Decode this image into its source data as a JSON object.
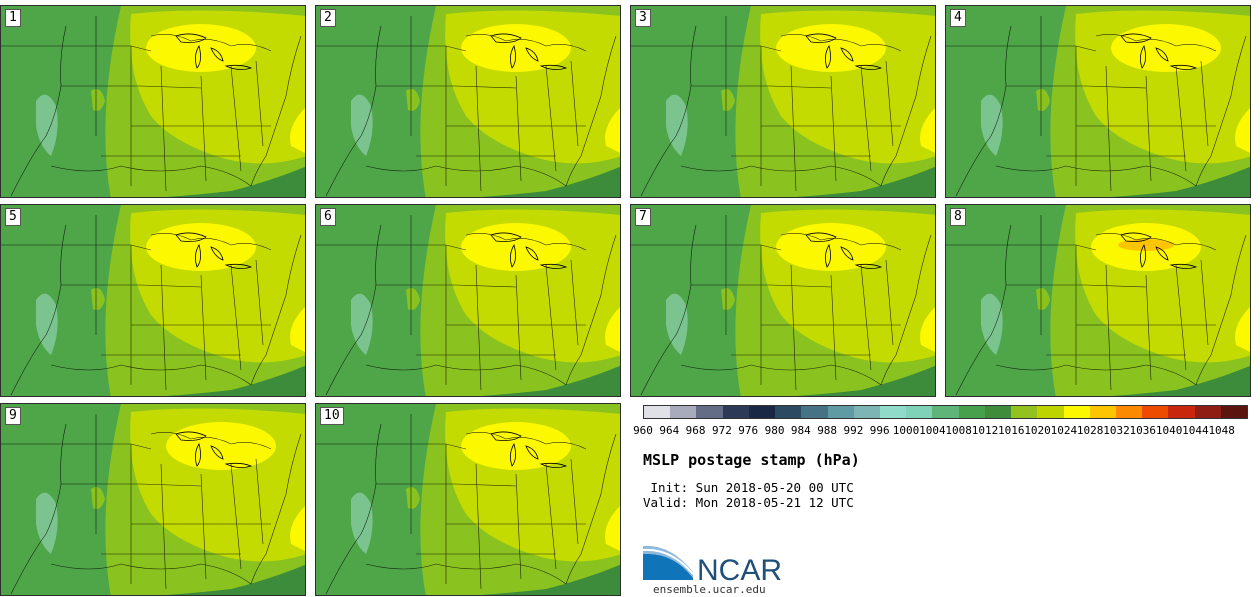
{
  "panels": [
    {
      "label": "1",
      "variant": "a"
    },
    {
      "label": "2",
      "variant": "b"
    },
    {
      "label": "3",
      "variant": "a"
    },
    {
      "label": "4",
      "variant": "c"
    },
    {
      "label": "5",
      "variant": "b"
    },
    {
      "label": "6",
      "variant": "a"
    },
    {
      "label": "7",
      "variant": "b"
    },
    {
      "label": "8",
      "variant": "d"
    },
    {
      "label": "9",
      "variant": "c"
    },
    {
      "label": "10",
      "variant": "a"
    }
  ],
  "colorbar": {
    "labels": [
      "960",
      "964",
      "968",
      "972",
      "976",
      "980",
      "984",
      "988",
      "992",
      "996",
      "1000",
      "1004",
      "1008",
      "1012",
      "1016",
      "1020",
      "1024",
      "1028",
      "1032",
      "1036",
      "1040",
      "1044",
      "1048"
    ],
    "colors": [
      "#dfe1e6",
      "#a8abbb",
      "#636e86",
      "#2c3a55",
      "#182845",
      "#2d4a63",
      "#457384",
      "#5e9ba3",
      "#7cb5b3",
      "#8fdac8",
      "#7fd1b7",
      "#5fb47a",
      "#46a04c",
      "#3f8d3a",
      "#93c11d",
      "#bed400",
      "#fbf800",
      "#fdc400",
      "#fb8a00",
      "#ec4b00",
      "#c8270c",
      "#8f1d14",
      "#5c150e"
    ]
  },
  "legend_colors": {
    "deep": "#3c8c3b",
    "mid": "#4fa649",
    "light_mid": "#8ac31f",
    "pale": "#c3db00",
    "high": "#fbf800",
    "peak": "#fdc400",
    "mountain": "#7cc48f",
    "coast": "#000000"
  },
  "title": "MSLP postage stamp (hPa)",
  "init_line": " Init: Sun 2018-05-20 00 UTC",
  "valid_line": "Valid: Mon 2018-05-21 12 UTC",
  "logo_text": "NCAR",
  "url": "ensemble.ucar.edu"
}
